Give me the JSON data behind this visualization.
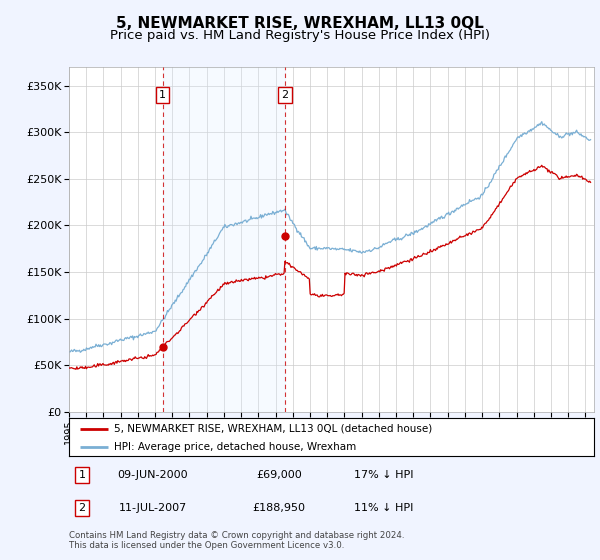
{
  "title": "5, NEWMARKET RISE, WREXHAM, LL13 0QL",
  "subtitle": "Price paid vs. HM Land Registry's House Price Index (HPI)",
  "ylabel_ticks": [
    "£0",
    "£50K",
    "£100K",
    "£150K",
    "£200K",
    "£250K",
    "£300K",
    "£350K"
  ],
  "ytick_values": [
    0,
    50000,
    100000,
    150000,
    200000,
    250000,
    300000,
    350000
  ],
  "ylim": [
    0,
    370000
  ],
  "xlim_start": 1995.0,
  "xlim_end": 2025.5,
  "sale1_x": 2000.44,
  "sale1_y": 69000,
  "sale1_label": "1",
  "sale1_date": "09-JUN-2000",
  "sale1_price": "£69,000",
  "sale1_hpi": "17% ↓ HPI",
  "sale2_x": 2007.53,
  "sale2_y": 188950,
  "sale2_label": "2",
  "sale2_date": "11-JUL-2007",
  "sale2_price": "£188,950",
  "sale2_hpi": "11% ↓ HPI",
  "red_line_color": "#cc0000",
  "blue_line_color": "#7aafd4",
  "shade_color": "#ddeeff",
  "background_color": "#f0f4ff",
  "plot_bg_color": "#ffffff",
  "grid_color": "#cccccc",
  "legend_label_red": "5, NEWMARKET RISE, WREXHAM, LL13 0QL (detached house)",
  "legend_label_blue": "HPI: Average price, detached house, Wrexham",
  "footnote": "Contains HM Land Registry data © Crown copyright and database right 2024.\nThis data is licensed under the Open Government Licence v3.0.",
  "title_fontsize": 11,
  "subtitle_fontsize": 9.5
}
